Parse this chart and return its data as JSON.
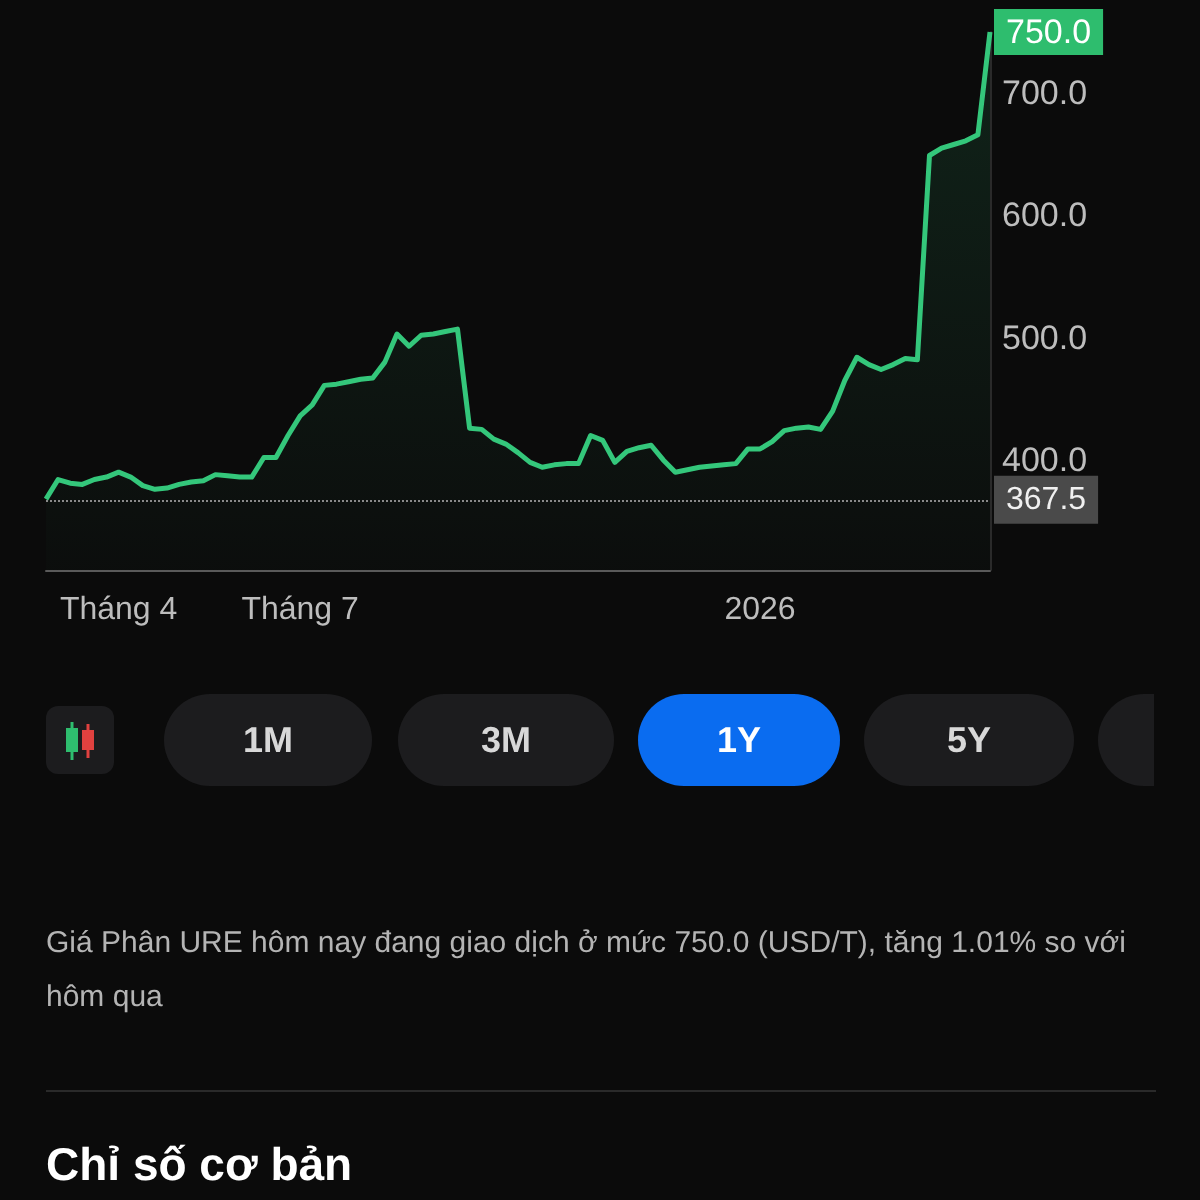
{
  "chart_data": {
    "type": "area",
    "categories": [
      null,
      null,
      null,
      null,
      null,
      null,
      "Tháng 4",
      null,
      null,
      null,
      null,
      null,
      null,
      null,
      null,
      null,
      null,
      null,
      null,
      null,
      null,
      "Tháng 7",
      null,
      null,
      null,
      null,
      null,
      null,
      null,
      null,
      null,
      null,
      null,
      null,
      null,
      null,
      null,
      null,
      null,
      null,
      null,
      null,
      null,
      null,
      null,
      null,
      null,
      null,
      null,
      null,
      null,
      null,
      null,
      null,
      null,
      null,
      null,
      null,
      null,
      "2026",
      null,
      null,
      null,
      null,
      null,
      null,
      null,
      null,
      null,
      null,
      null,
      null,
      null,
      null,
      null,
      null,
      null,
      null,
      null
    ],
    "series": [
      {
        "color": "#34c77b",
        "values": [
          368,
          384,
          381,
          380,
          384,
          386,
          390,
          386,
          379,
          376,
          377,
          380,
          382,
          383,
          388,
          387,
          386,
          386,
          402,
          402,
          420,
          436,
          445,
          461,
          462,
          464,
          466,
          467,
          480,
          503,
          493,
          502,
          503,
          505,
          507,
          426,
          425,
          417,
          413,
          406,
          398,
          394,
          396,
          397,
          397,
          420,
          416,
          398,
          407,
          410,
          412,
          400,
          390,
          392,
          394,
          395,
          396,
          397,
          409,
          409,
          415,
          424,
          426,
          427,
          425,
          440,
          465,
          484,
          478,
          474,
          478,
          483,
          482,
          649,
          655,
          658,
          661,
          666,
          750
        ]
      }
    ],
    "value_labels": [
      null,
      null,
      null,
      null,
      null,
      null,
      null,
      null,
      null,
      null,
      null,
      null,
      null,
      null,
      null,
      null,
      null,
      null,
      null,
      null,
      null,
      null,
      null,
      null,
      null,
      null,
      null,
      null,
      null,
      null,
      null,
      null,
      null,
      null,
      null,
      null,
      null,
      null,
      null,
      null,
      null,
      null,
      null,
      null,
      null,
      null,
      null,
      null,
      null,
      null,
      null,
      null,
      null,
      null,
      null,
      null,
      null,
      null,
      null,
      null,
      null,
      null,
      null,
      null,
      null,
      null,
      null,
      null,
      null,
      null,
      null,
      null,
      null,
      null,
      null,
      null,
      null,
      null,
      "750.0"
    ],
    "ylim": [
      310,
      750
    ],
    "yticks": [
      {
        "value": 400,
        "label": "400.0"
      },
      {
        "value": 500,
        "label": "500.0"
      },
      {
        "value": 600,
        "label": "600.0"
      },
      {
        "value": 700,
        "label": "700.0"
      }
    ],
    "ref_lines": [
      {
        "axis": "y",
        "value": 367.5,
        "label": "367.5",
        "color": "#8a8a8a",
        "line_style": "dotted"
      }
    ],
    "annotations": [
      "1M",
      "3M",
      "1Y",
      "5Y",
      "Giá Phân URE hôm nay đang giao dịch ở mức 750.0 (USD/T), tăng 1.01% so với hôm qua",
      "Chỉ số cơ bản"
    ]
  }
}
